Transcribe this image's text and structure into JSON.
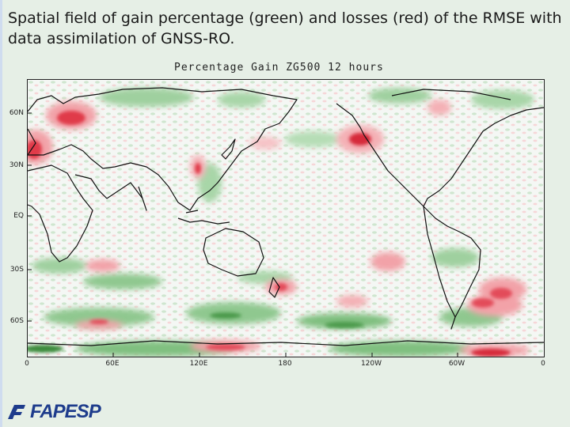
{
  "slide": {
    "title": "Spatial field of gain percentage (green)  and losses (red) of the RMSE with  data assimilation of  GNSS-RO."
  },
  "map": {
    "title": "Percentage Gain ZG500 12 hours",
    "lat_labels": [
      "60N",
      "30N",
      "EQ",
      "30S",
      "60S"
    ],
    "lon_labels": [
      "0",
      "60E",
      "120E",
      "180",
      "120W",
      "60W",
      "0"
    ],
    "gain_color": "#5fae5f",
    "loss_color": "#e03a4a"
  },
  "logo": {
    "text": "FAPESP",
    "color": "#1e3c8c"
  }
}
